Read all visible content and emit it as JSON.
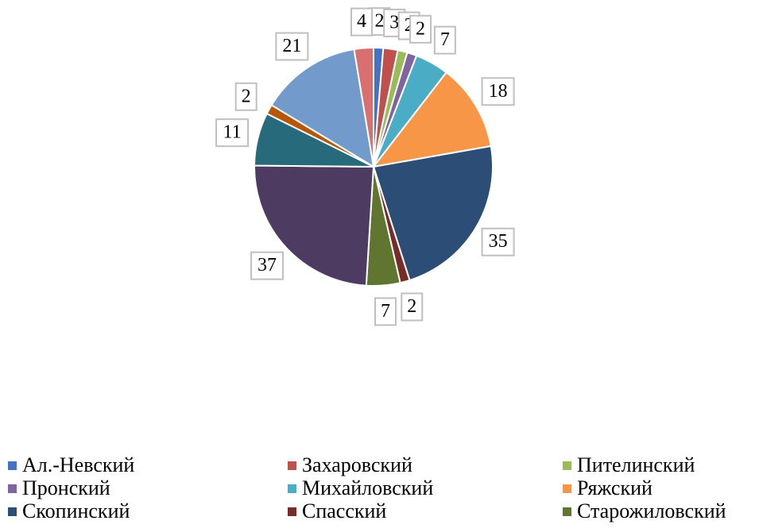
{
  "chart_data": {
    "type": "pie",
    "categories": [
      "Ал.-Невский",
      "Захаровский",
      "Пителинский",
      "Пронский",
      "Михайловский",
      "Ряжский",
      "Скопинский",
      "Спасский",
      "Старожиловский",
      null,
      null,
      null,
      null,
      null
    ],
    "values": [
      2,
      3,
      2,
      2,
      7,
      18,
      35,
      2,
      7,
      37,
      11,
      2,
      21,
      4
    ],
    "colors": [
      "#4472c4",
      "#c0504d",
      "#9bbb59",
      "#8064a2",
      "#4bacc6",
      "#f79646",
      "#2c4d75",
      "#772c2a",
      "#5f7530",
      "#4d3b62",
      "#276a7c",
      "#b65708",
      "#729aca",
      "#d9706f"
    ],
    "legend": "bottom"
  }
}
